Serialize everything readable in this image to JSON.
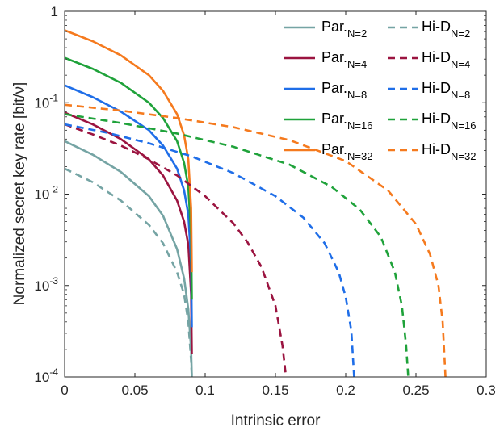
{
  "chart_data": {
    "type": "line",
    "xlabel": "Intrinsic error",
    "ylabel": "Normalized secret key rate  [bit/ν]",
    "xlim": [
      0,
      0.3
    ],
    "ylim": [
      0.0001,
      1
    ],
    "yscale": "log",
    "grid": false,
    "legend_position": "top-right",
    "x_ticks": [
      "0",
      "0.05",
      "0.1",
      "0.15",
      "0.2",
      "0.25",
      "0.3"
    ],
    "y_ticks": [
      {
        "base": "10",
        "exp": "-4",
        "value": 0.0001
      },
      {
        "base": "10",
        "exp": "-3",
        "value": 0.001
      },
      {
        "base": "10",
        "exp": "-2",
        "value": 0.01
      },
      {
        "base": "10",
        "exp": "-1",
        "value": 0.1
      },
      {
        "base": "1",
        "exp": "",
        "value": 1
      }
    ],
    "series": [
      {
        "name": "Par.",
        "sub": "N=2",
        "style": "solid",
        "color": "#75a4a4",
        "points": [
          [
            0,
            0.038
          ],
          [
            0.02,
            0.027
          ],
          [
            0.04,
            0.0175
          ],
          [
            0.06,
            0.0095
          ],
          [
            0.07,
            0.0058
          ],
          [
            0.08,
            0.0025
          ],
          [
            0.085,
            0.0012
          ],
          [
            0.088,
            0.00055
          ],
          [
            0.09,
            0.0002
          ],
          [
            0.0905,
            0.0001
          ]
        ]
      },
      {
        "name": "Par.",
        "sub": "N=4",
        "style": "solid",
        "color": "#9b1440",
        "points": [
          [
            0,
            0.078
          ],
          [
            0.02,
            0.058
          ],
          [
            0.04,
            0.04
          ],
          [
            0.06,
            0.024
          ],
          [
            0.07,
            0.016
          ],
          [
            0.08,
            0.0085
          ],
          [
            0.085,
            0.005
          ],
          [
            0.088,
            0.0028
          ],
          [
            0.09,
            0.0008
          ],
          [
            0.0905,
            0.00018
          ]
        ]
      },
      {
        "name": "Par.",
        "sub": "N=8",
        "style": "solid",
        "color": "#1f6ee8",
        "points": [
          [
            0,
            0.155
          ],
          [
            0.02,
            0.115
          ],
          [
            0.04,
            0.08
          ],
          [
            0.06,
            0.05
          ],
          [
            0.07,
            0.034
          ],
          [
            0.08,
            0.019
          ],
          [
            0.085,
            0.011
          ],
          [
            0.088,
            0.006
          ],
          [
            0.09,
            0.0018
          ],
          [
            0.0905,
            0.00035
          ]
        ]
      },
      {
        "name": "Par.",
        "sub": "N=16",
        "style": "solid",
        "color": "#1fa23a",
        "points": [
          [
            0,
            0.31
          ],
          [
            0.02,
            0.235
          ],
          [
            0.04,
            0.165
          ],
          [
            0.06,
            0.1
          ],
          [
            0.07,
            0.068
          ],
          [
            0.08,
            0.038
          ],
          [
            0.085,
            0.022
          ],
          [
            0.088,
            0.012
          ],
          [
            0.09,
            0.0035
          ],
          [
            0.0905,
            0.0007
          ]
        ]
      },
      {
        "name": "Par.",
        "sub": "N=32",
        "style": "solid",
        "color": "#f57a1e",
        "points": [
          [
            0,
            0.62
          ],
          [
            0.02,
            0.47
          ],
          [
            0.04,
            0.33
          ],
          [
            0.06,
            0.2
          ],
          [
            0.07,
            0.135
          ],
          [
            0.08,
            0.075
          ],
          [
            0.085,
            0.044
          ],
          [
            0.088,
            0.024
          ],
          [
            0.09,
            0.007
          ],
          [
            0.0905,
            0.0014
          ]
        ]
      },
      {
        "name": "Hi-D",
        "sub": "N=2",
        "style": "dashed",
        "color": "#75a4a4",
        "points": [
          [
            0,
            0.019
          ],
          [
            0.02,
            0.0135
          ],
          [
            0.04,
            0.0085
          ],
          [
            0.06,
            0.0046
          ],
          [
            0.07,
            0.0029
          ],
          [
            0.08,
            0.0014
          ],
          [
            0.085,
            0.0008
          ],
          [
            0.088,
            0.0004
          ],
          [
            0.09,
            0.00015
          ],
          [
            0.0905,
            0.0001
          ]
        ]
      },
      {
        "name": "Hi-D",
        "sub": "N=4",
        "style": "dashed",
        "color": "#9b1440",
        "points": [
          [
            0,
            0.058
          ],
          [
            0.02,
            0.045
          ],
          [
            0.04,
            0.034
          ],
          [
            0.06,
            0.024
          ],
          [
            0.08,
            0.016
          ],
          [
            0.1,
            0.0095
          ],
          [
            0.12,
            0.0048
          ],
          [
            0.13,
            0.003
          ],
          [
            0.14,
            0.0016
          ],
          [
            0.15,
            0.0006
          ],
          [
            0.155,
            0.00022
          ],
          [
            0.1575,
            0.0001
          ]
        ]
      },
      {
        "name": "Hi-D",
        "sub": "N=8",
        "style": "dashed",
        "color": "#1f6ee8",
        "points": [
          [
            0,
            0.058
          ],
          [
            0.03,
            0.047
          ],
          [
            0.06,
            0.036
          ],
          [
            0.09,
            0.026
          ],
          [
            0.12,
            0.017
          ],
          [
            0.15,
            0.0095
          ],
          [
            0.17,
            0.0055
          ],
          [
            0.185,
            0.0029
          ],
          [
            0.195,
            0.0014
          ],
          [
            0.2,
            0.00075
          ],
          [
            0.204,
            0.00032
          ],
          [
            0.206,
            0.0001
          ]
        ]
      },
      {
        "name": "Hi-D",
        "sub": "N=16",
        "style": "dashed",
        "color": "#1fa23a",
        "points": [
          [
            0,
            0.075
          ],
          [
            0.04,
            0.06
          ],
          [
            0.08,
            0.046
          ],
          [
            0.12,
            0.033
          ],
          [
            0.16,
            0.021
          ],
          [
            0.19,
            0.012
          ],
          [
            0.21,
            0.0068
          ],
          [
            0.225,
            0.0034
          ],
          [
            0.235,
            0.0014
          ],
          [
            0.24,
            0.0006
          ],
          [
            0.243,
            0.00022
          ],
          [
            0.2445,
            0.0001
          ]
        ]
      },
      {
        "name": "Hi-D",
        "sub": "N=32",
        "style": "dashed",
        "color": "#f57a1e",
        "points": [
          [
            0,
            0.095
          ],
          [
            0.04,
            0.082
          ],
          [
            0.08,
            0.068
          ],
          [
            0.12,
            0.054
          ],
          [
            0.16,
            0.039
          ],
          [
            0.2,
            0.023
          ],
          [
            0.23,
            0.011
          ],
          [
            0.25,
            0.0047
          ],
          [
            0.26,
            0.0022
          ],
          [
            0.266,
            0.001
          ],
          [
            0.269,
            0.0004
          ],
          [
            0.271,
            0.0001
          ]
        ]
      }
    ]
  }
}
